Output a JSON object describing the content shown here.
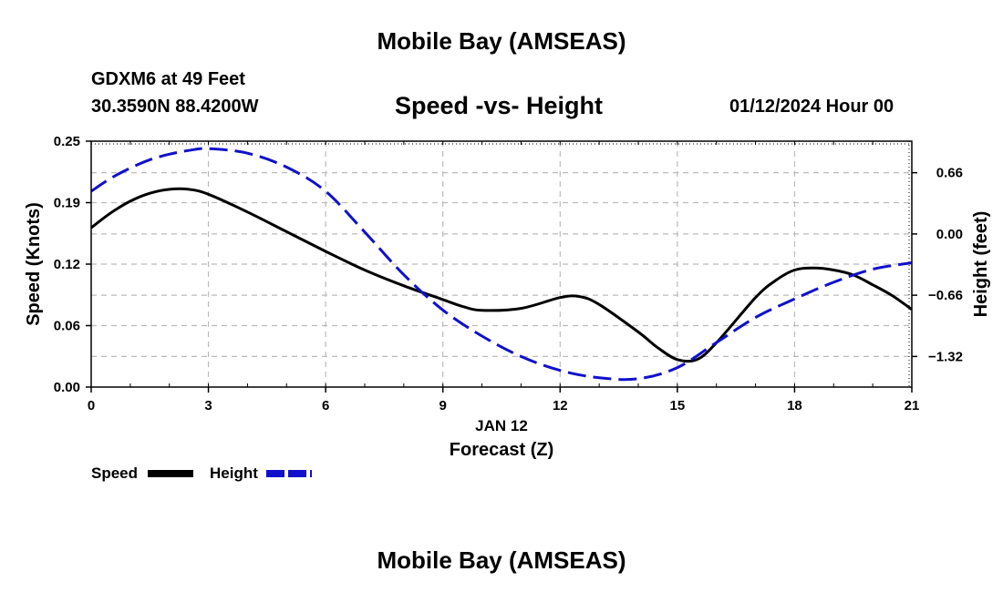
{
  "header": {
    "title": "Mobile Bay (AMSEAS)",
    "station": "GDXM6 at 49 Feet",
    "coords": "30.3590N  88.4200W",
    "subtitle": "Speed -vs- Height",
    "datetime": "01/12/2024 Hour 00"
  },
  "footer": {
    "title": "Mobile Bay (AMSEAS)"
  },
  "legend": {
    "speed_label": "Speed",
    "height_label": "Height"
  },
  "colors": {
    "speed": "#000000",
    "height": "#1010cc",
    "grid": "#bbbbbb"
  },
  "chart_data": {
    "type": "line",
    "title": "Speed -vs- Height",
    "xlabel": "Forecast (Z)",
    "xlabel_date": "JAN 12",
    "ylabel": "Speed (Knots)",
    "y2label": "Height (feet)",
    "xlim": [
      0,
      21
    ],
    "ylim": [
      0,
      0.25
    ],
    "y2lim": [
      -1.65,
      1.0
    ],
    "x_ticks": [
      0,
      3,
      6,
      9,
      12,
      15,
      18,
      21
    ],
    "y_ticks": [
      "0.00",
      "0.06",
      "0.12",
      "0.19",
      "0.25"
    ],
    "y_tick_values": [
      0,
      0.0625,
      0.125,
      0.1875,
      0.25
    ],
    "y2_ticks": [
      "0.66",
      "0.00",
      "−0.66",
      "−1.32"
    ],
    "y2_tick_values": [
      0.66,
      0.0,
      -0.66,
      -1.32
    ],
    "grid": true,
    "series": [
      {
        "name": "Speed",
        "axis": "left",
        "style": "solid",
        "x": [
          0,
          0.5,
          1,
          1.5,
          2,
          2.5,
          3,
          4,
          5,
          6,
          7,
          8,
          9,
          9.5,
          10,
          11,
          12,
          12.5,
          13,
          14,
          14.5,
          15,
          15.5,
          16,
          17,
          17.5,
          18,
          18.5,
          19,
          19.5,
          20,
          20.5,
          21
        ],
        "values": [
          0.162,
          0.177,
          0.189,
          0.197,
          0.201,
          0.201,
          0.196,
          0.178,
          0.158,
          0.138,
          0.119,
          0.103,
          0.089,
          0.082,
          0.078,
          0.08,
          0.091,
          0.092,
          0.084,
          0.056,
          0.04,
          0.028,
          0.028,
          0.045,
          0.091,
          0.108,
          0.119,
          0.121,
          0.119,
          0.114,
          0.104,
          0.093,
          0.079
        ]
      },
      {
        "name": "Height",
        "axis": "right",
        "style": "dashed",
        "x": [
          0,
          0.5,
          1,
          1.5,
          2,
          2.5,
          3,
          4,
          5,
          6,
          7,
          8,
          9,
          10,
          11,
          12,
          13,
          14,
          15,
          16,
          17,
          18,
          19,
          20,
          21
        ],
        "values": [
          0.46,
          0.6,
          0.71,
          0.8,
          0.86,
          0.9,
          0.92,
          0.87,
          0.72,
          0.46,
          0.02,
          -0.44,
          -0.82,
          -1.1,
          -1.32,
          -1.47,
          -1.55,
          -1.56,
          -1.44,
          -1.17,
          -0.9,
          -0.7,
          -0.52,
          -0.38,
          -0.31
        ]
      }
    ]
  }
}
